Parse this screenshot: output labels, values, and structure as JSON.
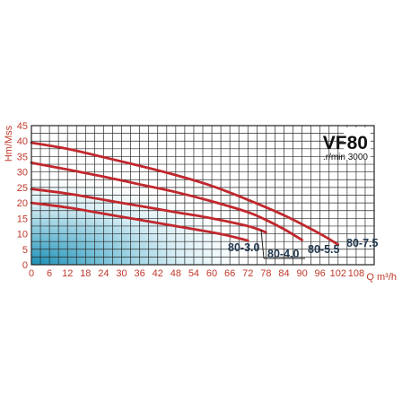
{
  "chart_data": {
    "type": "line",
    "title": "VF80",
    "subtitle": ".r/min 3000",
    "xlabel": "Q m³/h",
    "ylabel": "Hm/Mss",
    "xlim": [
      0,
      114
    ],
    "ylim": [
      0,
      45
    ],
    "x_ticks": [
      0,
      6,
      12,
      18,
      24,
      30,
      36,
      42,
      48,
      54,
      60,
      66,
      72,
      78,
      84,
      90,
      96,
      102,
      108
    ],
    "y_ticks": [
      0,
      5,
      10,
      15,
      20,
      25,
      30,
      35,
      40,
      45
    ],
    "grid": true,
    "legend": "labels at curve ends",
    "series": [
      {
        "name": "80-3.0",
        "color": "#c0282d",
        "x": [
          0,
          12,
          24,
          36,
          48,
          60,
          66,
          72
        ],
        "y": [
          20,
          18.5,
          16.5,
          14.5,
          12.5,
          10.5,
          9.3,
          7.8
        ]
      },
      {
        "name": "80-4.0",
        "color": "#c0282d",
        "x": [
          0,
          12,
          24,
          36,
          48,
          60,
          72,
          78
        ],
        "y": [
          24.5,
          23,
          21,
          19,
          17,
          15,
          12.5,
          10.5
        ]
      },
      {
        "name": "80-5.5",
        "color": "#c0282d",
        "x": [
          0,
          12,
          24,
          36,
          48,
          60,
          72,
          78,
          84,
          90
        ],
        "y": [
          33,
          30.8,
          28.5,
          26,
          23.5,
          20.5,
          17,
          14.5,
          11.5,
          8
        ]
      },
      {
        "name": "80-7.5",
        "color": "#c0282d",
        "x": [
          0,
          12,
          24,
          36,
          48,
          60,
          72,
          84,
          96,
          102
        ],
        "y": [
          39.5,
          37.5,
          34.8,
          32,
          29,
          25.5,
          21,
          16,
          10,
          6.5
        ]
      }
    ],
    "series_labels": [
      "80-3.0",
      "80-4.0",
      "80-5.5",
      "80-7.5"
    ]
  }
}
